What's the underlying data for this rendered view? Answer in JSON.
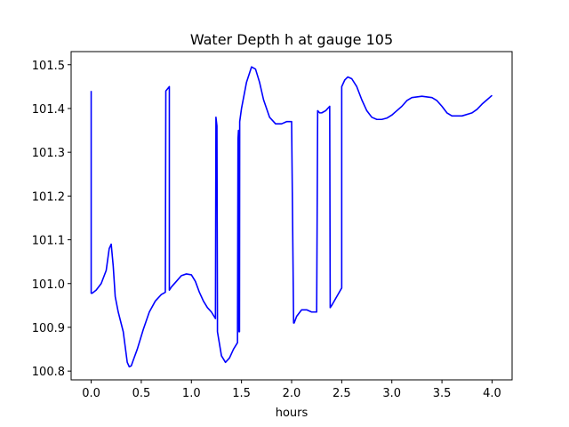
{
  "chart_data": {
    "type": "line",
    "title": "Water Depth h at gauge 105",
    "xlabel": "hours",
    "ylabel": "",
    "xlim": [
      -0.2,
      4.2
    ],
    "ylim": [
      100.78,
      101.53
    ],
    "xticks": [
      0.0,
      0.5,
      1.0,
      1.5,
      2.0,
      2.5,
      3.0,
      3.5,
      4.0
    ],
    "xtick_labels": [
      "0.0",
      "0.5",
      "1.0",
      "1.5",
      "2.0",
      "2.5",
      "3.0",
      "3.5",
      "4.0"
    ],
    "yticks": [
      100.8,
      100.9,
      101.0,
      101.1,
      101.2,
      101.3,
      101.4,
      101.5
    ],
    "ytick_labels": [
      "100.8",
      "100.9",
      "101.0",
      "101.1",
      "101.2",
      "101.3",
      "101.4",
      "101.5"
    ],
    "grid": false,
    "series": [
      {
        "color": "#0000ff",
        "x": [
          0.0,
          0.0,
          0.01,
          0.05,
          0.1,
          0.15,
          0.18,
          0.2,
          0.22,
          0.24,
          0.27,
          0.32,
          0.36,
          0.38,
          0.4,
          0.42,
          0.46,
          0.52,
          0.58,
          0.64,
          0.7,
          0.74,
          0.745,
          0.78,
          0.78,
          0.8,
          0.85,
          0.9,
          0.95,
          1.0,
          1.04,
          1.08,
          1.12,
          1.16,
          1.2,
          1.24,
          1.245,
          1.255,
          1.26,
          1.26,
          1.3,
          1.34,
          1.38,
          1.42,
          1.46,
          1.465,
          1.47,
          1.475,
          1.48,
          1.482,
          1.5,
          1.55,
          1.6,
          1.64,
          1.68,
          1.72,
          1.78,
          1.84,
          1.9,
          1.95,
          2.0,
          2.02,
          2.025,
          2.05,
          2.1,
          2.15,
          2.2,
          2.25,
          2.26,
          2.28,
          2.3,
          2.34,
          2.38,
          2.385,
          2.4,
          2.45,
          2.5,
          2.5,
          2.53,
          2.56,
          2.6,
          2.65,
          2.7,
          2.75,
          2.8,
          2.85,
          2.9,
          2.95,
          3.0,
          3.05,
          3.1,
          3.15,
          3.2,
          3.3,
          3.4,
          3.45,
          3.5,
          3.55,
          3.6,
          3.7,
          3.8,
          3.85,
          3.9,
          3.95,
          4.0
        ],
        "y": [
          101.44,
          100.978,
          100.978,
          100.985,
          101.0,
          101.03,
          101.08,
          101.09,
          101.04,
          100.97,
          100.935,
          100.89,
          100.82,
          100.81,
          100.812,
          100.825,
          100.85,
          100.895,
          100.935,
          100.96,
          100.975,
          100.98,
          101.44,
          101.45,
          100.985,
          100.992,
          101.005,
          101.018,
          101.022,
          101.02,
          101.005,
          100.98,
          100.96,
          100.945,
          100.935,
          100.92,
          101.38,
          101.36,
          100.93,
          100.89,
          100.835,
          100.82,
          100.83,
          100.85,
          100.865,
          101.33,
          101.35,
          100.89,
          100.89,
          101.37,
          101.4,
          101.46,
          101.495,
          101.49,
          101.46,
          101.42,
          101.38,
          101.365,
          101.365,
          101.37,
          101.37,
          100.91,
          100.91,
          100.925,
          100.94,
          100.94,
          100.935,
          100.935,
          101.395,
          101.39,
          101.39,
          101.395,
          101.405,
          100.945,
          100.95,
          100.97,
          100.99,
          101.45,
          101.465,
          101.472,
          101.468,
          101.45,
          101.42,
          101.395,
          101.38,
          101.375,
          101.375,
          101.378,
          101.385,
          101.395,
          101.405,
          101.418,
          101.425,
          101.428,
          101.425,
          101.418,
          101.405,
          101.39,
          101.383,
          101.383,
          101.39,
          101.398,
          101.41,
          101.42,
          101.43
        ]
      }
    ]
  }
}
